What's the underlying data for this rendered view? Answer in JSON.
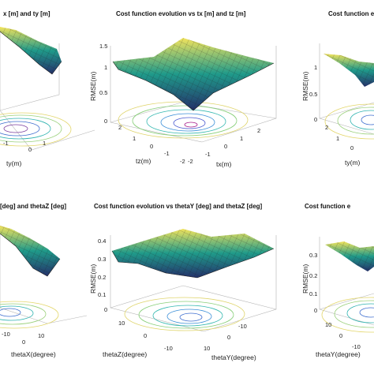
{
  "colors": {
    "surface_low": "#24306a",
    "surface_mid": "#1f9a8a",
    "surface_high": "#f2e35c",
    "mesh_line": "#1b1b1b",
    "axis": "#606060"
  },
  "chart_data": [
    {
      "type": "heatmap",
      "title": "x [m] and ty [m]",
      "xlabel": "ty(m)",
      "ticks": {
        "x": [
          "-1",
          "0",
          "1"
        ]
      }
    },
    {
      "type": "heatmap",
      "title": "Cost function evolution vs tx [m] and tz [m]",
      "xlabel": "tz(m)",
      "ylabel": "tx(m)",
      "zlabel": "RMSE(m)",
      "zlim": [
        0,
        1.5
      ],
      "ticks": {
        "z": [
          "0",
          "0.5",
          "1",
          "1.5"
        ],
        "x": [
          "2",
          "1",
          "0",
          "-1",
          "-2"
        ],
        "y": [
          "2",
          "1",
          "0",
          "-1",
          "-2"
        ]
      }
    },
    {
      "type": "heatmap",
      "title": "Cost function e",
      "xlabel": "ty(m)",
      "zlabel": "RMSE(m)",
      "zlim": [
        0,
        1
      ],
      "ticks": {
        "z": [
          "0",
          "0.5",
          "1"
        ],
        "x": [
          "2",
          "1",
          "0"
        ]
      }
    },
    {
      "type": "heatmap",
      "title": "[deg] and thetaZ [deg]",
      "xlabel": "thetaX(degree)",
      "ticks": {
        "x": [
          "-10",
          "0",
          "10"
        ]
      }
    },
    {
      "type": "heatmap",
      "title": "Cost function evolution vs thetaY [deg] and thetaZ [deg]",
      "xlabel": "thetaZ(degree)",
      "ylabel": "thetaY(degree)",
      "zlabel": "RMSE(m)",
      "zlim": [
        0,
        0.4
      ],
      "ticks": {
        "z": [
          "0",
          "0.1",
          "0.2",
          "0.3",
          "0.4"
        ],
        "x": [
          "10",
          "0",
          "-10"
        ],
        "y": [
          "-10",
          "0",
          "10"
        ]
      }
    },
    {
      "type": "heatmap",
      "title": "Cost function e",
      "xlabel": "thetaY(degree)",
      "zlabel": "RMSE(m)",
      "zlim": [
        0,
        0.3
      ],
      "ticks": {
        "z": [
          "0",
          "0.1",
          "0.2",
          "0.3"
        ],
        "x": [
          "10",
          "0",
          "-10"
        ]
      }
    }
  ]
}
